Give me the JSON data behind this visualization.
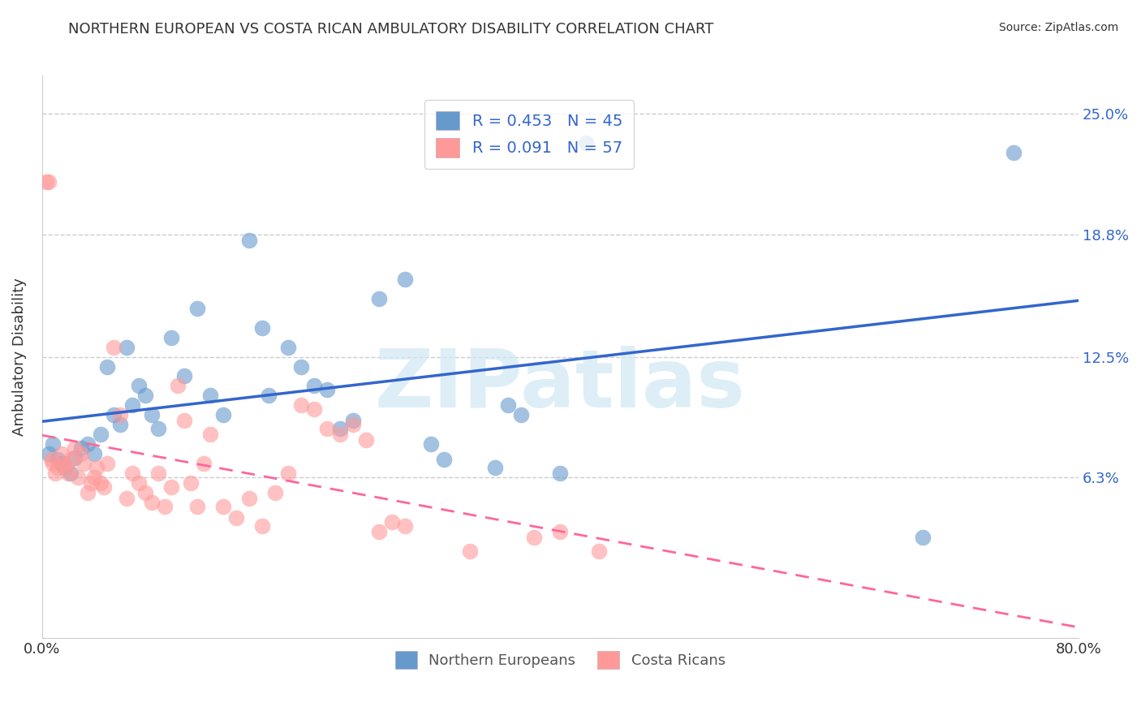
{
  "title": "NORTHERN EUROPEAN VS COSTA RICAN AMBULATORY DISABILITY CORRELATION CHART",
  "source": "Source: ZipAtlas.com",
  "xlabel": "",
  "ylabel": "Ambulatory Disability",
  "xlim": [
    0.0,
    0.8
  ],
  "ylim": [
    -0.02,
    0.27
  ],
  "yticks": [
    0.063,
    0.125,
    0.188,
    0.25
  ],
  "ytick_labels": [
    "6.3%",
    "12.5%",
    "18.8%",
    "25.0%"
  ],
  "xticks": [
    0.0,
    0.16,
    0.32,
    0.48,
    0.64,
    0.8
  ],
  "xtick_labels": [
    "0.0%",
    "",
    "",
    "",
    "",
    "80.0%"
  ],
  "legend_texts": [
    "R = 0.453   N = 45",
    "R = 0.091   N = 57"
  ],
  "legend_bottom": [
    "Northern Europeans",
    "Costa Ricans"
  ],
  "blue_color": "#6699CC",
  "pink_color": "#FF9999",
  "blue_line_color": "#3366CC",
  "pink_line_color": "#FF6699",
  "watermark": "ZIPatlas",
  "blue_R": 0.453,
  "blue_N": 45,
  "pink_R": 0.091,
  "pink_N": 57,
  "blue_x": [
    0.012,
    0.005,
    0.008,
    0.015,
    0.018,
    0.022,
    0.025,
    0.03,
    0.035,
    0.04,
    0.045,
    0.05,
    0.055,
    0.06,
    0.065,
    0.07,
    0.075,
    0.08,
    0.085,
    0.09,
    0.1,
    0.11,
    0.12,
    0.13,
    0.14,
    0.16,
    0.17,
    0.175,
    0.19,
    0.2,
    0.21,
    0.22,
    0.23,
    0.24,
    0.26,
    0.28,
    0.3,
    0.31,
    0.35,
    0.36,
    0.37,
    0.4,
    0.42,
    0.68,
    0.75
  ],
  "blue_y": [
    0.072,
    0.075,
    0.08,
    0.07,
    0.068,
    0.065,
    0.073,
    0.078,
    0.08,
    0.075,
    0.085,
    0.12,
    0.095,
    0.09,
    0.13,
    0.1,
    0.11,
    0.105,
    0.095,
    0.088,
    0.135,
    0.115,
    0.15,
    0.105,
    0.095,
    0.185,
    0.14,
    0.105,
    0.13,
    0.12,
    0.11,
    0.108,
    0.088,
    0.092,
    0.155,
    0.165,
    0.08,
    0.072,
    0.068,
    0.1,
    0.095,
    0.065,
    0.235,
    0.032,
    0.23
  ],
  "pink_x": [
    0.003,
    0.005,
    0.007,
    0.008,
    0.01,
    0.012,
    0.015,
    0.017,
    0.019,
    0.02,
    0.022,
    0.025,
    0.028,
    0.03,
    0.032,
    0.035,
    0.038,
    0.04,
    0.042,
    0.045,
    0.048,
    0.05,
    0.055,
    0.06,
    0.065,
    0.07,
    0.075,
    0.08,
    0.085,
    0.09,
    0.095,
    0.1,
    0.105,
    0.11,
    0.115,
    0.12,
    0.125,
    0.13,
    0.14,
    0.15,
    0.16,
    0.17,
    0.18,
    0.19,
    0.2,
    0.21,
    0.22,
    0.23,
    0.24,
    0.25,
    0.26,
    0.27,
    0.28,
    0.33,
    0.38,
    0.4,
    0.43
  ],
  "pink_y": [
    0.215,
    0.215,
    0.072,
    0.07,
    0.065,
    0.068,
    0.075,
    0.07,
    0.068,
    0.065,
    0.072,
    0.078,
    0.063,
    0.075,
    0.07,
    0.055,
    0.06,
    0.063,
    0.068,
    0.06,
    0.058,
    0.07,
    0.13,
    0.095,
    0.052,
    0.065,
    0.06,
    0.055,
    0.05,
    0.065,
    0.048,
    0.058,
    0.11,
    0.092,
    0.06,
    0.048,
    0.07,
    0.085,
    0.048,
    0.042,
    0.052,
    0.038,
    0.055,
    0.065,
    0.1,
    0.098,
    0.088,
    0.085,
    0.09,
    0.082,
    0.035,
    0.04,
    0.038,
    0.025,
    0.032,
    0.035,
    0.025
  ]
}
